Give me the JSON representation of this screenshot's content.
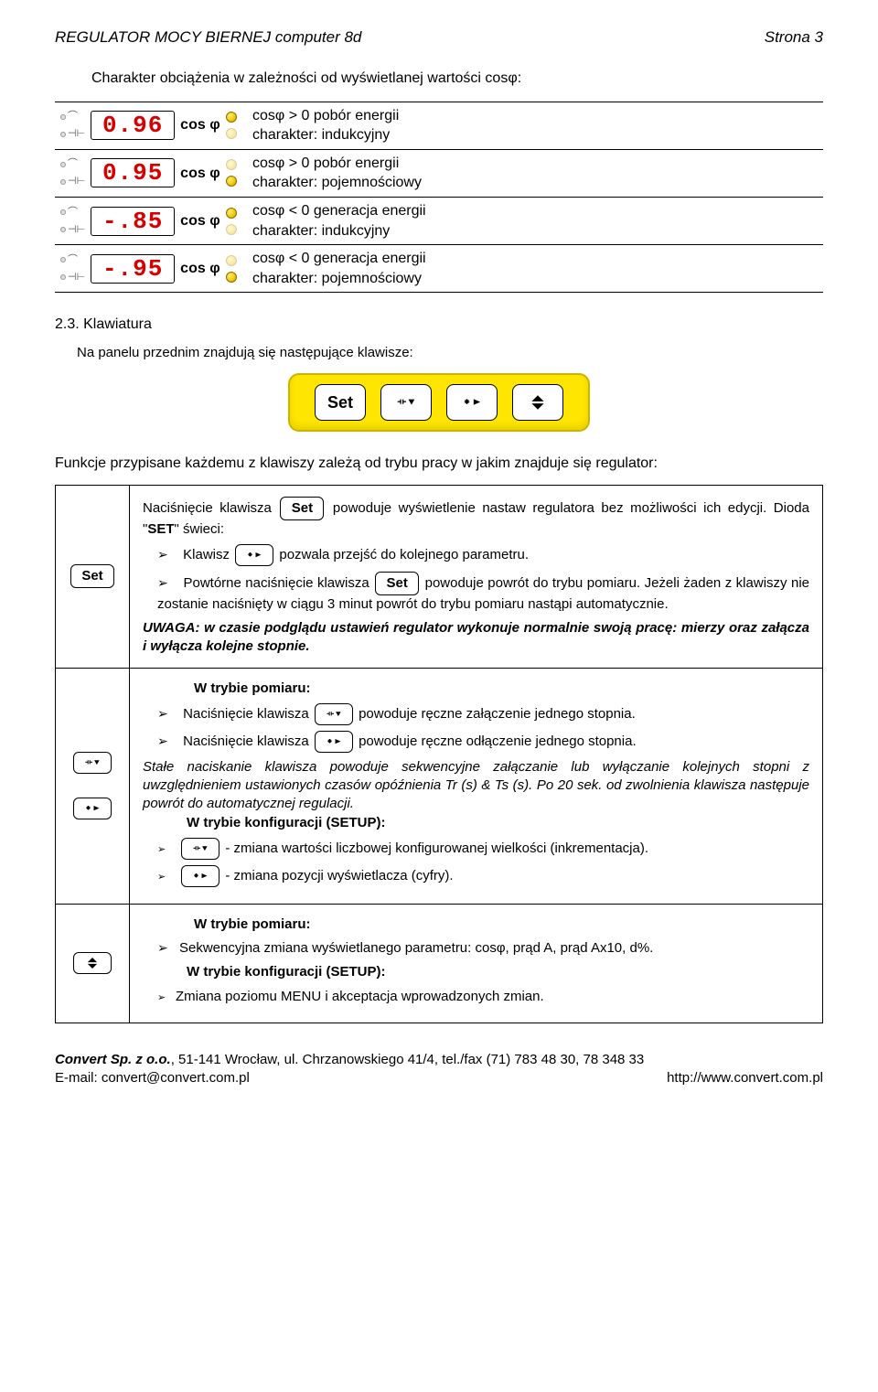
{
  "header": {
    "left": "REGULATOR MOCY BIERNEJ  computer  8d",
    "right": "Strona  3"
  },
  "intro": "Charakter obciążenia w zależności od wyświetlanej wartości cosφ:",
  "displays": [
    {
      "seg": "0.96",
      "cos": "cos φ",
      "dot_top": true,
      "dot_bot": false,
      "l1": "cosφ > 0    pobór energii",
      "l2": "charakter: indukcyjny"
    },
    {
      "seg": "0.95",
      "cos": "cos φ",
      "dot_top": false,
      "dot_bot": true,
      "l1": "cosφ > 0    pobór energii",
      "l2": "charakter: pojemnościowy"
    },
    {
      "seg": "-.85",
      "cos": "cos φ",
      "dot_top": true,
      "dot_bot": false,
      "l1": "cosφ < 0    generacja energii",
      "l2": "charakter: indukcyjny"
    },
    {
      "seg": "-.95",
      "cos": "cos φ",
      "dot_top": false,
      "dot_bot": true,
      "l1": "cosφ < 0    generacja energii",
      "l2": "charakter: pojemnościowy"
    }
  ],
  "section23": {
    "title": "2.3. Klawiatura",
    "line": "Na panelu przednim znajdują się następujące klawisze:"
  },
  "below": "Funkcje przypisane każdemu z klawiszy zależą od trybu pracy w jakim znajduje się regulator:",
  "set_cell": {
    "p1a": "Naciśnięcie klawisza ",
    "p1b": " powoduje wyświetlenie nastaw regulatora bez możliwości ich edycji. Dioda \"",
    "p1c": "SET",
    "p1d": "\" świeci:",
    "b1a": "Klawisz ",
    "b1b": " pozwala przejść do kolejnego parametru.",
    "b2a": "Powtórne naciśnięcie klawisza ",
    "b2b": " powoduje powrót do trybu pomiaru. Jeżeli żaden z klawiszy nie zostanie naciśnięty w ciągu 3 minut powrót do trybu pomiaru nastąpi automatycznie.",
    "uwaga": "UWAGA: w czasie podglądu ustawień regulator wykonuje normalnie swoją pracę: mierzy oraz załącza i wyłącza kolejne stopnie."
  },
  "arrow_cell": {
    "h1": "W trybie pomiaru:",
    "b1a": "Naciśnięcie klawisza ",
    "b1b": " powoduje ręczne załączenie jednego stopnia.",
    "b2a": "Naciśnięcie klawisza ",
    "b2b": " powoduje ręczne odłączenie jednego stopnia.",
    "ital": "Stałe naciskanie klawisza powoduje sekwencyjne załączanie lub wyłączanie kolejnych stopni z uwzględnieniem ustawionych czasów opóźnienia Tr (s) & Ts (s). Po 20 sek. od zwolnienia klawisza następuje powrót do automatycznej regulacji.",
    "h2": "W trybie konfiguracji (SETUP):",
    "b3": " - zmiana wartości liczbowej konfigurowanej wielkości (inkrementacja).",
    "b4": " - zmiana pozycji wyświetlacza (cyfry)."
  },
  "updown_cell": {
    "h1": "W trybie pomiaru:",
    "b1": "Sekwencyjna zmiana wyświetlanego parametru: cosφ, prąd A, prąd Ax10, d%.",
    "h2": "W trybie konfiguracji (SETUP):",
    "b2": "Zmiana poziomu MENU i akceptacja wprowadzonych zmian."
  },
  "footer": {
    "l1_left": "Convert Sp. z o.o., 51-141 Wrocław, ul. Chrzanowskiego 41/4, tel./fax (71) 783 48 30, 78 348 33",
    "l2_left": "E-mail: convert@convert.com.pl",
    "l2_right": "http://www.convert.com.pl"
  },
  "key_labels": {
    "set": "Set"
  },
  "colors": {
    "seg_text": "#d60000",
    "panel_bg": "#ffe600",
    "panel_border": "#ccb300"
  }
}
